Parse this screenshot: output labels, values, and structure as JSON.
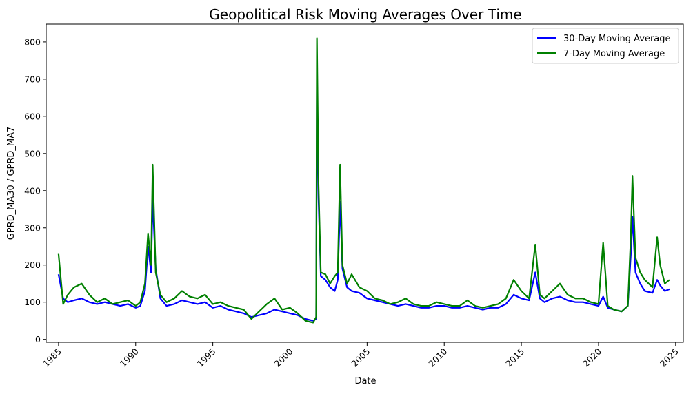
{
  "chart_data": {
    "type": "line",
    "title": "Geopolitical Risk Moving Averages Over Time",
    "xlabel": "Date",
    "ylabel": "GPRD_MA30 / GPRD_MA7",
    "xlim": [
      1984.2,
      2025.5
    ],
    "ylim": [
      -8,
      848
    ],
    "x_ticks": [
      1985,
      1990,
      1995,
      2000,
      2005,
      2010,
      2015,
      2020,
      2025
    ],
    "y_ticks": [
      0,
      100,
      200,
      300,
      400,
      500,
      600,
      700,
      800
    ],
    "grid": false,
    "legend_position": "top-right",
    "series": [
      {
        "name": "30-Day Moving Average",
        "color": "#0000ff",
        "x": [
          1985.0,
          1985.3,
          1985.6,
          1986.0,
          1986.5,
          1987.0,
          1987.5,
          1988.0,
          1988.5,
          1989.0,
          1989.5,
          1990.0,
          1990.3,
          1990.6,
          1990.8,
          1991.0,
          1991.1,
          1991.3,
          1991.6,
          1992.0,
          1992.5,
          1993.0,
          1993.5,
          1994.0,
          1994.5,
          1995.0,
          1995.5,
          1996.0,
          1996.5,
          1997.0,
          1997.5,
          1998.0,
          1998.5,
          1999.0,
          1999.5,
          2000.0,
          2000.5,
          2001.0,
          2001.5,
          2001.7,
          2001.75,
          2001.85,
          2002.0,
          2002.3,
          2002.6,
          2002.9,
          2003.1,
          2003.25,
          2003.4,
          2003.7,
          2004.0,
          2004.5,
          2005.0,
          2005.5,
          2006.0,
          2006.5,
          2007.0,
          2007.5,
          2008.0,
          2008.5,
          2009.0,
          2009.5,
          2010.0,
          2010.5,
          2011.0,
          2011.5,
          2012.0,
          2012.5,
          2013.0,
          2013.5,
          2014.0,
          2014.5,
          2015.0,
          2015.5,
          2015.9,
          2016.2,
          2016.5,
          2017.0,
          2017.5,
          2018.0,
          2018.5,
          2019.0,
          2019.5,
          2020.0,
          2020.3,
          2020.6,
          2021.0,
          2021.5,
          2021.9,
          2022.1,
          2022.2,
          2022.4,
          2022.7,
          2023.0,
          2023.5,
          2023.8,
          2024.0,
          2024.3,
          2024.6
        ],
        "values": [
          175,
          110,
          100,
          105,
          110,
          100,
          95,
          100,
          95,
          90,
          95,
          85,
          90,
          130,
          250,
          180,
          380,
          190,
          110,
          90,
          95,
          105,
          100,
          95,
          100,
          85,
          90,
          80,
          75,
          70,
          60,
          65,
          70,
          80,
          75,
          70,
          65,
          55,
          50,
          55,
          680,
          380,
          170,
          160,
          140,
          130,
          160,
          370,
          190,
          140,
          130,
          125,
          110,
          105,
          100,
          95,
          90,
          95,
          90,
          85,
          85,
          90,
          90,
          85,
          85,
          90,
          85,
          80,
          85,
          85,
          95,
          120,
          110,
          105,
          180,
          110,
          100,
          110,
          115,
          105,
          100,
          100,
          95,
          90,
          115,
          85,
          80,
          75,
          90,
          230,
          330,
          180,
          150,
          130,
          125,
          160,
          145,
          130,
          135
        ]
      },
      {
        "name": "7-Day Moving Average",
        "color": "#008000",
        "x": [
          1985.0,
          1985.3,
          1985.6,
          1986.0,
          1986.5,
          1987.0,
          1987.5,
          1988.0,
          1988.5,
          1989.0,
          1989.5,
          1990.0,
          1990.3,
          1990.6,
          1990.8,
          1991.0,
          1991.1,
          1991.3,
          1991.6,
          1992.0,
          1992.5,
          1993.0,
          1993.5,
          1994.0,
          1994.5,
          1995.0,
          1995.5,
          1996.0,
          1996.5,
          1997.0,
          1997.5,
          1998.0,
          1998.5,
          1999.0,
          1999.5,
          2000.0,
          2000.5,
          2001.0,
          2001.5,
          2001.7,
          2001.75,
          2001.85,
          2002.0,
          2002.3,
          2002.6,
          2002.9,
          2003.1,
          2003.25,
          2003.4,
          2003.7,
          2004.0,
          2004.5,
          2005.0,
          2005.5,
          2006.0,
          2006.5,
          2007.0,
          2007.5,
          2008.0,
          2008.5,
          2009.0,
          2009.5,
          2010.0,
          2010.5,
          2011.0,
          2011.5,
          2012.0,
          2012.5,
          2013.0,
          2013.5,
          2014.0,
          2014.5,
          2015.0,
          2015.5,
          2015.9,
          2016.2,
          2016.5,
          2017.0,
          2017.5,
          2018.0,
          2018.5,
          2019.0,
          2019.5,
          2020.0,
          2020.3,
          2020.6,
          2021.0,
          2021.5,
          2021.9,
          2022.1,
          2022.2,
          2022.4,
          2022.7,
          2023.0,
          2023.5,
          2023.8,
          2024.0,
          2024.3,
          2024.6
        ],
        "values": [
          230,
          95,
          120,
          140,
          150,
          120,
          100,
          110,
          95,
          100,
          105,
          90,
          100,
          150,
          285,
          200,
          470,
          180,
          120,
          100,
          110,
          130,
          115,
          110,
          120,
          95,
          100,
          90,
          85,
          80,
          55,
          75,
          95,
          110,
          80,
          85,
          70,
          50,
          45,
          60,
          810,
          420,
          180,
          175,
          150,
          170,
          180,
          470,
          200,
          150,
          175,
          140,
          130,
          110,
          105,
          95,
          100,
          110,
          95,
          90,
          90,
          100,
          95,
          90,
          90,
          105,
          90,
          85,
          90,
          95,
          110,
          160,
          130,
          110,
          255,
          120,
          110,
          130,
          150,
          120,
          110,
          110,
          100,
          95,
          260,
          90,
          80,
          75,
          90,
          280,
          440,
          220,
          180,
          160,
          140,
          275,
          200,
          150,
          160
        ]
      }
    ]
  }
}
